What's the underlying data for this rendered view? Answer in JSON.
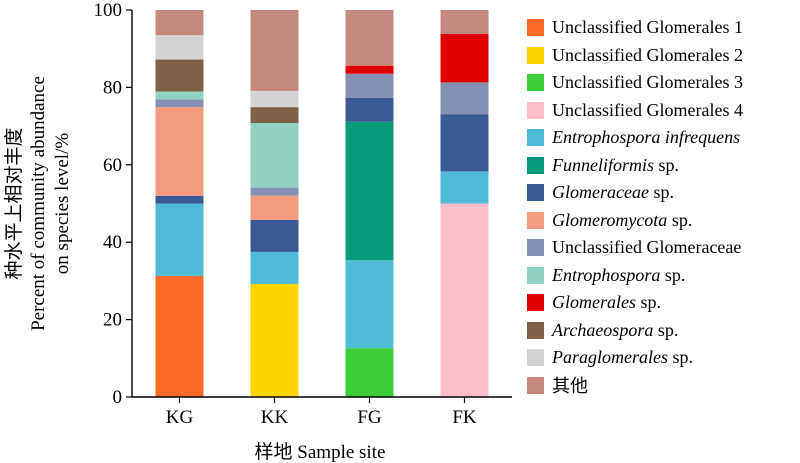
{
  "chart_data": {
    "type": "bar",
    "stacked": true,
    "categories": [
      "KG",
      "KK",
      "FG",
      "FK"
    ],
    "xlabel": "样地 Sample site",
    "ylabel_lines": [
      "种水平上相对丰度",
      "Percent of community abundance",
      "on species level/%"
    ],
    "ylim": [
      0,
      100
    ],
    "yticks": [
      0,
      20,
      40,
      60,
      80,
      100
    ],
    "legend_position": "right",
    "grid": false,
    "series": [
      {
        "name": "Unclassified Glomerales 1",
        "color": "#F96B26",
        "values": [
          31.3,
          0,
          0,
          0
        ]
      },
      {
        "name": "Unclassified Glomerales 2",
        "color": "#FFD500",
        "values": [
          0,
          29.2,
          0,
          0
        ]
      },
      {
        "name": "Unclassified Glomerales 3",
        "color": "#3DCC3A",
        "values": [
          0,
          0,
          12.6,
          0
        ]
      },
      {
        "name": "Unclassified Glomerales 4",
        "color": "#FFBDCB",
        "values": [
          0,
          0,
          0,
          50.0
        ]
      },
      {
        "name": "Entrophospora infrequens",
        "italic_part": "Entrophospora infrequens",
        "color": "#4DBBD5",
        "values": [
          18.7,
          8.3,
          22.7,
          8.3
        ]
      },
      {
        "name": "Funneliformis sp.",
        "italic_part": "Funneliformis",
        "color": "#069A7A",
        "values": [
          0,
          0,
          35.8,
          0
        ]
      },
      {
        "name": "Glomeraceae sp.",
        "italic_part": "Glomeraceae",
        "color": "#3A5A93",
        "values": [
          2.0,
          8.3,
          6.2,
          14.7
        ]
      },
      {
        "name": "Glomeromycota sp.",
        "italic_part": "Glomeromycota",
        "color": "#F39B7F",
        "values": [
          22.9,
          6.2,
          0,
          0
        ]
      },
      {
        "name": "Unclassified Glomeraceae",
        "color": "#8491B4",
        "values": [
          2.0,
          2.1,
          6.2,
          8.3
        ]
      },
      {
        "name": "Entrophospora sp.",
        "italic_part": "Entrophospora",
        "color": "#91D1C2",
        "values": [
          2.0,
          16.7,
          0,
          0
        ]
      },
      {
        "name": "Glomerales sp.",
        "italic_part": "Glomerales",
        "color": "#E00000",
        "values": [
          0,
          0,
          2.1,
          12.5
        ]
      },
      {
        "name": "Archaeospora sp.",
        "italic_part": "Archaeospora",
        "color": "#7E6148",
        "values": [
          8.3,
          4.1,
          0,
          0
        ]
      },
      {
        "name": "Paraglomerales sp.",
        "italic_part": "Paraglomerales",
        "color": "#D3D3D3",
        "values": [
          6.3,
          4.2,
          0,
          0
        ]
      },
      {
        "name": "其他",
        "color": "#C3897E",
        "values": [
          6.5,
          20.9,
          14.4,
          6.2
        ]
      }
    ]
  }
}
